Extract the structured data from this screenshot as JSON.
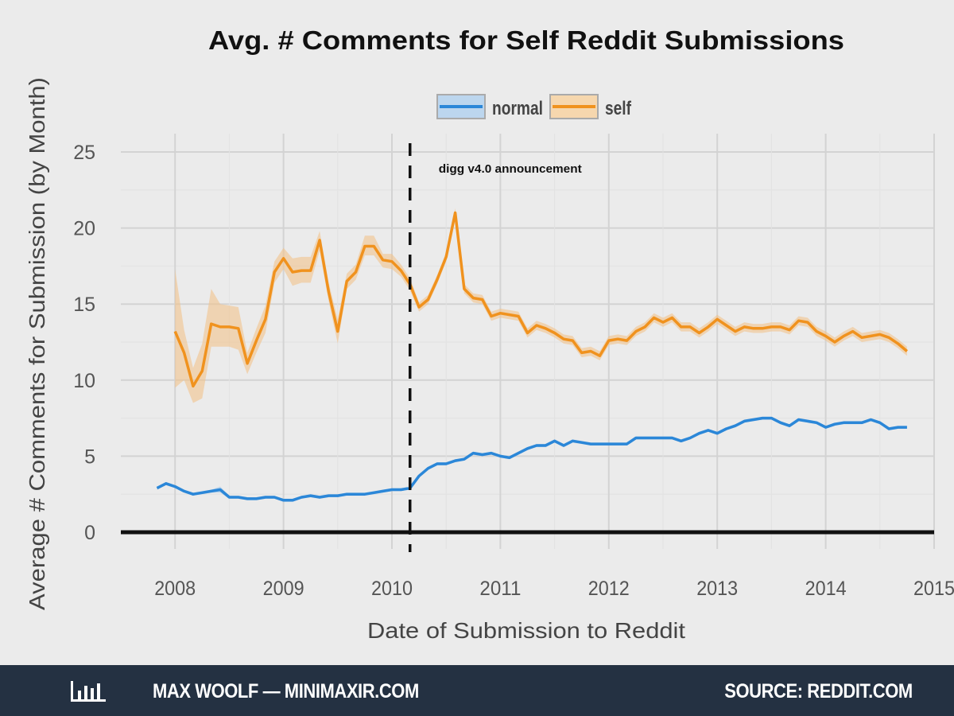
{
  "chart_data": {
    "type": "line",
    "title": "Avg. # Comments for Self Reddit Submissions",
    "xlabel": "Date of Submission to Reddit",
    "ylabel": "Average # Comments for Submission (by Month)",
    "xlim": [
      "2007-07",
      "2015-01"
    ],
    "ylim": [
      0,
      26
    ],
    "x_ticks": [
      "2008",
      "2009",
      "2010",
      "2011",
      "2012",
      "2013",
      "2014",
      "2015"
    ],
    "y_ticks": [
      0,
      5,
      10,
      15,
      20,
      25
    ],
    "grid": true,
    "legend": {
      "position": "top"
    },
    "annotation": {
      "x": "2010-03",
      "label": "digg v4.0 announcement"
    },
    "series": [
      {
        "name": "normal",
        "color": "#2b87d8",
        "x": [
          "2007-11",
          "2007-12",
          "2008-01",
          "2008-02",
          "2008-03",
          "2008-04",
          "2008-05",
          "2008-06",
          "2008-07",
          "2008-08",
          "2008-09",
          "2008-10",
          "2008-11",
          "2008-12",
          "2009-01",
          "2009-02",
          "2009-03",
          "2009-04",
          "2009-05",
          "2009-06",
          "2009-07",
          "2009-08",
          "2009-09",
          "2009-10",
          "2009-11",
          "2009-12",
          "2010-01",
          "2010-02",
          "2010-03",
          "2010-04",
          "2010-05",
          "2010-06",
          "2010-07",
          "2010-08",
          "2010-09",
          "2010-10",
          "2010-11",
          "2010-12",
          "2011-01",
          "2011-02",
          "2011-03",
          "2011-04",
          "2011-05",
          "2011-06",
          "2011-07",
          "2011-08",
          "2011-09",
          "2011-10",
          "2011-11",
          "2011-12",
          "2012-01",
          "2012-02",
          "2012-03",
          "2012-04",
          "2012-05",
          "2012-06",
          "2012-07",
          "2012-08",
          "2012-09",
          "2012-10",
          "2012-11",
          "2012-12",
          "2013-01",
          "2013-02",
          "2013-03",
          "2013-04",
          "2013-05",
          "2013-06",
          "2013-07",
          "2013-08",
          "2013-09",
          "2013-10",
          "2013-11",
          "2013-12",
          "2014-01",
          "2014-02",
          "2014-03",
          "2014-04",
          "2014-05",
          "2014-06",
          "2014-07",
          "2014-08",
          "2014-09",
          "2014-10"
        ],
        "values": [
          2.9,
          3.2,
          3.0,
          2.7,
          2.5,
          2.6,
          2.7,
          2.8,
          2.3,
          2.3,
          2.2,
          2.2,
          2.3,
          2.3,
          2.1,
          2.1,
          2.3,
          2.4,
          2.3,
          2.4,
          2.4,
          2.5,
          2.5,
          2.5,
          2.6,
          2.7,
          2.8,
          2.8,
          2.9,
          3.7,
          4.2,
          4.5,
          4.5,
          4.7,
          4.8,
          5.2,
          5.1,
          5.2,
          5.0,
          4.9,
          5.2,
          5.5,
          5.7,
          5.7,
          6.0,
          5.7,
          6.0,
          5.9,
          5.8,
          5.8,
          5.8,
          5.8,
          5.8,
          6.2,
          6.2,
          6.2,
          6.2,
          6.2,
          6.0,
          6.2,
          6.5,
          6.7,
          6.5,
          6.8,
          7.0,
          7.3,
          7.4,
          7.5,
          7.5,
          7.2,
          7.0,
          7.4,
          7.3,
          7.2,
          6.9,
          7.1,
          7.2,
          7.2,
          7.2,
          7.4,
          7.2,
          6.8,
          6.9,
          6.9
        ],
        "lower": [
          2.8,
          3.1,
          2.9,
          2.6,
          2.4,
          2.5,
          2.6,
          2.6,
          2.2,
          2.2,
          2.1,
          2.1,
          2.2,
          2.2,
          2.0,
          2.0,
          2.2,
          2.3,
          2.2,
          2.3,
          2.3,
          2.4,
          2.4,
          2.4,
          2.5,
          2.6,
          2.7,
          2.7,
          2.8,
          3.6,
          4.1,
          4.4,
          4.4,
          4.6,
          4.7,
          5.1,
          5.0,
          5.1,
          4.9,
          4.8,
          5.1,
          5.4,
          5.6,
          5.6,
          5.9,
          5.6,
          5.9,
          5.8,
          5.7,
          5.7,
          5.7,
          5.7,
          5.7,
          6.1,
          6.1,
          6.1,
          6.1,
          6.1,
          5.9,
          6.1,
          6.4,
          6.6,
          6.4,
          6.7,
          6.9,
          7.2,
          7.3,
          7.4,
          7.4,
          7.1,
          6.9,
          7.3,
          7.2,
          7.1,
          6.8,
          7.0,
          7.1,
          7.1,
          7.1,
          7.3,
          7.1,
          6.7,
          6.8,
          6.8
        ],
        "upper": [
          3.0,
          3.3,
          3.1,
          2.8,
          2.6,
          2.7,
          2.8,
          3.0,
          2.4,
          2.4,
          2.3,
          2.3,
          2.4,
          2.4,
          2.2,
          2.2,
          2.4,
          2.5,
          2.4,
          2.5,
          2.5,
          2.6,
          2.6,
          2.6,
          2.7,
          2.8,
          2.9,
          2.9,
          3.0,
          3.8,
          4.3,
          4.6,
          4.6,
          4.8,
          4.9,
          5.3,
          5.2,
          5.3,
          5.1,
          5.0,
          5.3,
          5.6,
          5.8,
          5.8,
          6.1,
          5.8,
          6.1,
          6.0,
          5.9,
          5.9,
          5.9,
          5.9,
          5.9,
          6.3,
          6.3,
          6.3,
          6.3,
          6.3,
          6.1,
          6.3,
          6.6,
          6.8,
          6.6,
          6.9,
          7.1,
          7.4,
          7.5,
          7.6,
          7.6,
          7.3,
          7.1,
          7.5,
          7.4,
          7.3,
          7.0,
          7.2,
          7.3,
          7.3,
          7.3,
          7.5,
          7.3,
          6.9,
          7.0,
          7.0
        ]
      },
      {
        "name": "self",
        "color": "#f0921e",
        "x": [
          "2008-01",
          "2008-02",
          "2008-03",
          "2008-04",
          "2008-05",
          "2008-06",
          "2008-07",
          "2008-08",
          "2008-09",
          "2008-10",
          "2008-11",
          "2008-12",
          "2009-01",
          "2009-02",
          "2009-03",
          "2009-04",
          "2009-05",
          "2009-06",
          "2009-07",
          "2009-08",
          "2009-09",
          "2009-10",
          "2009-11",
          "2009-12",
          "2010-01",
          "2010-02",
          "2010-03",
          "2010-04",
          "2010-05",
          "2010-06",
          "2010-07",
          "2010-08",
          "2010-09",
          "2010-10",
          "2010-11",
          "2010-12",
          "2011-01",
          "2011-02",
          "2011-03",
          "2011-04",
          "2011-05",
          "2011-06",
          "2011-07",
          "2011-08",
          "2011-09",
          "2011-10",
          "2011-11",
          "2011-12",
          "2012-01",
          "2012-02",
          "2012-03",
          "2012-04",
          "2012-05",
          "2012-06",
          "2012-07",
          "2012-08",
          "2012-09",
          "2012-10",
          "2012-11",
          "2012-12",
          "2013-01",
          "2013-02",
          "2013-03",
          "2013-04",
          "2013-05",
          "2013-06",
          "2013-07",
          "2013-08",
          "2013-09",
          "2013-10",
          "2013-11",
          "2013-12",
          "2014-01",
          "2014-02",
          "2014-03",
          "2014-04",
          "2014-05",
          "2014-06",
          "2014-07",
          "2014-08",
          "2014-09",
          "2014-10"
        ],
        "values": [
          13.2,
          11.8,
          9.6,
          10.6,
          13.7,
          13.5,
          13.5,
          13.4,
          11.1,
          12.6,
          14.0,
          17.1,
          18.0,
          17.1,
          17.2,
          17.2,
          19.2,
          15.8,
          13.2,
          16.5,
          17.1,
          18.8,
          18.8,
          17.9,
          17.8,
          17.2,
          16.3,
          14.8,
          15.3,
          16.6,
          18.1,
          21.0,
          16.0,
          15.4,
          15.3,
          14.2,
          14.4,
          14.3,
          14.2,
          13.1,
          13.6,
          13.4,
          13.1,
          12.7,
          12.6,
          11.8,
          11.9,
          11.6,
          12.6,
          12.7,
          12.6,
          13.2,
          13.5,
          14.1,
          13.8,
          14.1,
          13.5,
          13.5,
          13.1,
          13.5,
          14.0,
          13.6,
          13.2,
          13.5,
          13.4,
          13.4,
          13.5,
          13.5,
          13.3,
          13.9,
          13.8,
          13.2,
          12.9,
          12.5,
          12.9,
          13.2,
          12.8,
          12.9,
          13.0,
          12.8,
          12.4,
          11.9
        ],
        "lower": [
          9.5,
          10.0,
          8.5,
          8.8,
          12.2,
          12.2,
          12.2,
          12.0,
          10.4,
          11.8,
          13.1,
          16.4,
          17.3,
          16.2,
          16.4,
          16.4,
          18.5,
          15.2,
          12.4,
          16.0,
          16.6,
          18.2,
          18.2,
          17.4,
          17.3,
          16.8,
          15.9,
          14.5,
          15.0,
          16.3,
          17.8,
          20.7,
          15.7,
          15.1,
          15.0,
          13.9,
          14.1,
          14.0,
          13.9,
          12.8,
          13.3,
          13.1,
          12.8,
          12.4,
          12.3,
          11.5,
          11.6,
          11.3,
          12.3,
          12.4,
          12.3,
          12.9,
          13.2,
          13.8,
          13.5,
          13.8,
          13.2,
          13.2,
          12.8,
          13.2,
          13.7,
          13.3,
          12.9,
          13.2,
          13.1,
          13.1,
          13.2,
          13.2,
          13.0,
          13.6,
          13.5,
          12.9,
          12.6,
          12.2,
          12.6,
          12.9,
          12.5,
          12.6,
          12.7,
          12.5,
          12.1,
          11.6
        ],
        "upper": [
          17.3,
          13.3,
          10.8,
          12.4,
          16.0,
          15.0,
          14.9,
          14.8,
          11.8,
          13.4,
          14.9,
          17.8,
          18.7,
          18.0,
          18.1,
          18.1,
          19.8,
          16.4,
          14.0,
          17.0,
          17.6,
          19.5,
          19.5,
          18.3,
          18.3,
          17.6,
          16.7,
          15.1,
          15.6,
          16.9,
          18.4,
          21.3,
          16.3,
          15.7,
          15.6,
          14.5,
          14.7,
          14.6,
          14.5,
          13.4,
          13.9,
          13.7,
          13.4,
          13.0,
          12.9,
          12.1,
          12.2,
          11.9,
          12.9,
          13.0,
          12.9,
          13.5,
          13.8,
          14.4,
          14.1,
          14.4,
          13.8,
          13.8,
          13.4,
          13.8,
          14.3,
          13.9,
          13.5,
          13.8,
          13.7,
          13.7,
          13.8,
          13.8,
          13.6,
          14.2,
          14.1,
          13.5,
          13.2,
          12.8,
          13.2,
          13.5,
          13.1,
          13.2,
          13.3,
          13.1,
          12.7,
          12.2
        ]
      }
    ]
  },
  "footer": {
    "credit": "MAX WOOLF — MINIMAXIR.COM",
    "source": "SOURCE: REDDIT.COM"
  }
}
